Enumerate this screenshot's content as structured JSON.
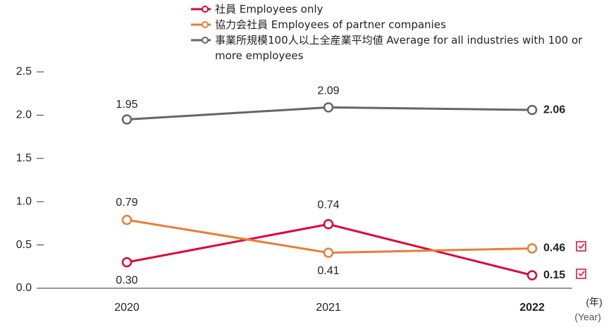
{
  "chart_data": {
    "type": "line",
    "categories": [
      "2020",
      "2021",
      "2022"
    ],
    "x_unit": "(年)",
    "x_unit_en": "(Year)",
    "series": [
      {
        "name": "社員  Employees only",
        "color": "#d7063b",
        "values": [
          0.3,
          0.74,
          0.15
        ],
        "value_labels": [
          "0.30",
          "0.74",
          "0.15"
        ]
      },
      {
        "name": "協力会社員  Employees of partner companies",
        "color": "#e67e3a",
        "values": [
          0.79,
          0.41,
          0.46
        ]
      },
      {
        "name": "事業所規模100人以上全産業平均値  Average for all industries with 100 or more employees",
        "color": "#666666",
        "values": [
          1.95,
          2.09,
          2.06
        ]
      }
    ],
    "ylim": [
      0,
      2.5
    ],
    "yticks": [
      {
        "value": 0,
        "label": "0.0"
      },
      0.5,
      {
        "value": 1,
        "label": "1.0"
      },
      1.5,
      {
        "value": 2,
        "label": "2.0"
      },
      2.5
    ],
    "legend": "top"
  }
}
